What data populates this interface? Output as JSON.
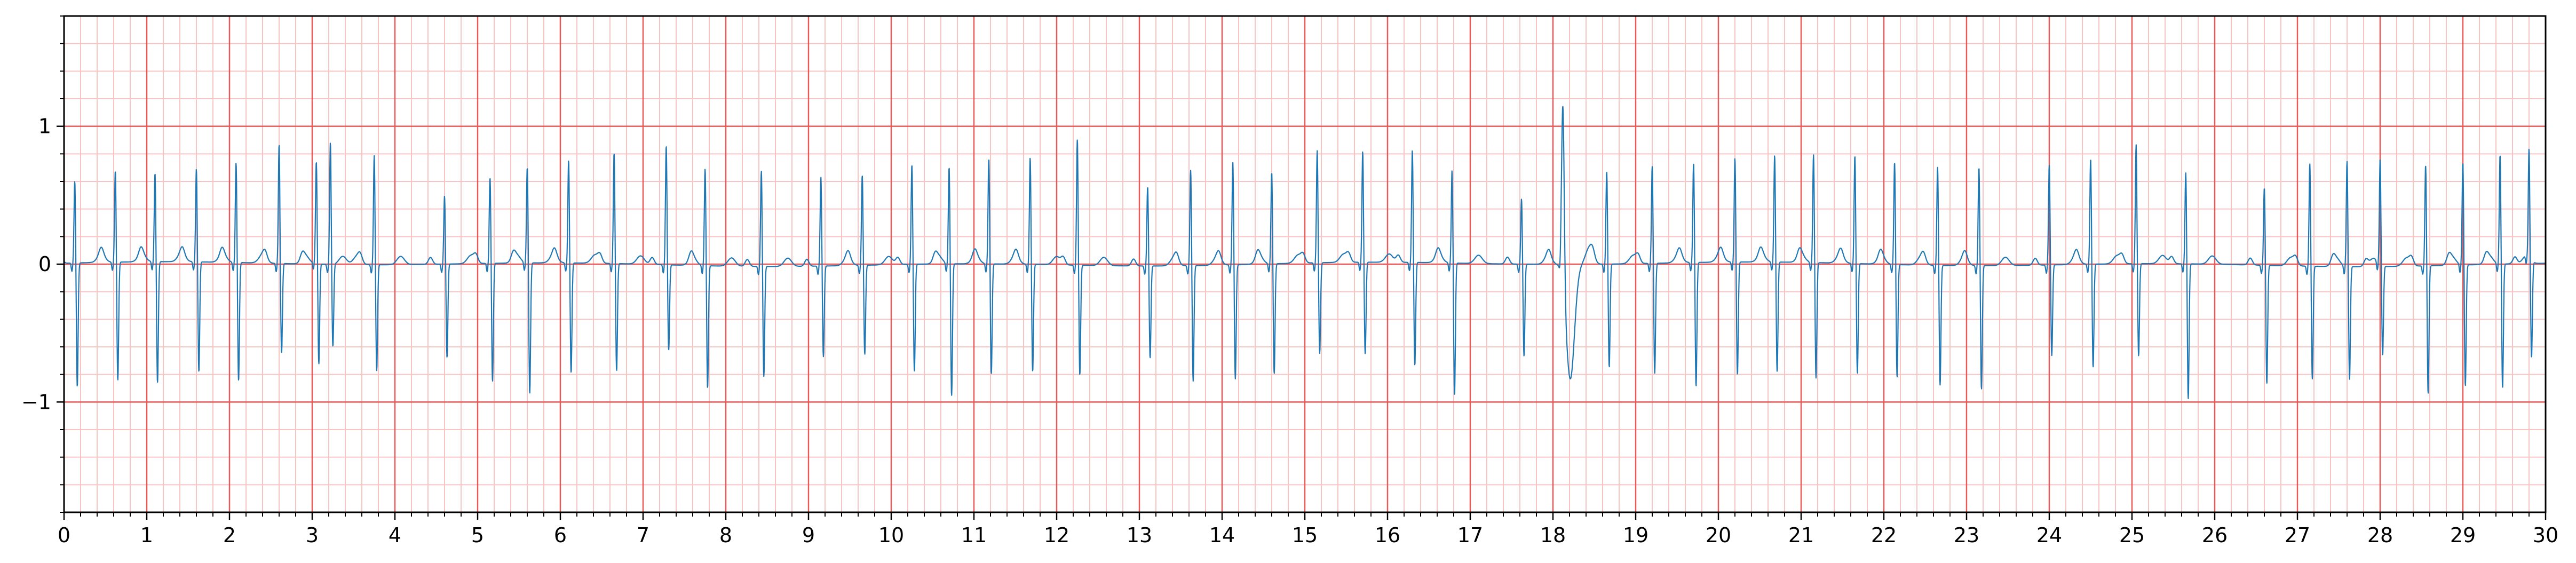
{
  "chart_data": {
    "type": "line",
    "title": "",
    "xlabel": "",
    "ylabel": "",
    "xlim": [
      0,
      30
    ],
    "ylim": [
      -1.8,
      1.8
    ],
    "x_ticks": [
      0,
      1,
      2,
      3,
      4,
      5,
      6,
      7,
      8,
      9,
      10,
      11,
      12,
      13,
      14,
      15,
      16,
      17,
      18,
      19,
      20,
      21,
      22,
      23,
      24,
      25,
      26,
      27,
      28,
      29,
      30
    ],
    "x_tick_labels": [
      "0",
      "1",
      "2",
      "3",
      "4",
      "5",
      "6",
      "7",
      "8",
      "9",
      "10",
      "11",
      "12",
      "13",
      "14",
      "15",
      "16",
      "17",
      "18",
      "19",
      "20",
      "21",
      "22",
      "23",
      "24",
      "25",
      "26",
      "27",
      "28",
      "29",
      "30"
    ],
    "y_ticks": [
      -1,
      0,
      1
    ],
    "y_tick_labels": [
      "−1",
      "0",
      "1"
    ],
    "grid": {
      "major_x_step": 1,
      "major_y_step": 1,
      "minor_x_step": 0.2,
      "minor_y_step": 0.2,
      "major_color": "#e85a5a",
      "minor_color": "#f7c3c3"
    },
    "colors": {
      "line": "#1f77b4",
      "axes": "#000000"
    },
    "series": [
      {
        "name": "",
        "beats": [
          {
            "t": 0.13,
            "r": 0.6,
            "s": -0.9
          },
          {
            "t": 0.62,
            "r": 0.67,
            "s": -0.86
          },
          {
            "t": 1.1,
            "r": 0.65,
            "s": -0.88
          },
          {
            "t": 1.6,
            "r": 0.68,
            "s": -0.8
          },
          {
            "t": 2.08,
            "r": 0.73,
            "s": -0.86
          },
          {
            "t": 2.6,
            "r": 0.87,
            "s": -0.65
          },
          {
            "t": 3.05,
            "r": 0.7,
            "s": -0.75
          },
          {
            "t": 3.22,
            "r": 0.89,
            "s": -0.6
          },
          {
            "t": 3.75,
            "r": 0.8,
            "s": -0.77
          },
          {
            "t": 4.6,
            "r": 0.5,
            "s": -0.68
          },
          {
            "t": 5.15,
            "r": 0.63,
            "s": -0.86
          },
          {
            "t": 5.6,
            "r": 0.7,
            "s": -0.95
          },
          {
            "t": 6.1,
            "r": 0.75,
            "s": -0.8
          },
          {
            "t": 6.65,
            "r": 0.81,
            "s": -0.78
          },
          {
            "t": 7.28,
            "r": 0.87,
            "s": -0.62
          },
          {
            "t": 7.75,
            "r": 0.71,
            "s": -0.89
          },
          {
            "t": 8.43,
            "r": 0.7,
            "s": -0.8
          },
          {
            "t": 9.15,
            "r": 0.65,
            "s": -0.66
          },
          {
            "t": 9.65,
            "r": 0.66,
            "s": -0.65
          },
          {
            "t": 10.25,
            "r": 0.73,
            "s": -0.78
          },
          {
            "t": 10.7,
            "r": 0.71,
            "s": -0.96
          },
          {
            "t": 11.18,
            "r": 0.77,
            "s": -0.8
          },
          {
            "t": 11.68,
            "r": 0.78,
            "s": -0.78
          },
          {
            "t": 12.25,
            "r": 0.92,
            "s": -0.8
          },
          {
            "t": 13.1,
            "r": 0.58,
            "s": -0.67
          },
          {
            "t": 13.62,
            "r": 0.7,
            "s": -0.84
          },
          {
            "t": 14.13,
            "r": 0.75,
            "s": -0.83
          },
          {
            "t": 14.6,
            "r": 0.67,
            "s": -0.8
          },
          {
            "t": 15.15,
            "r": 0.82,
            "s": -0.66
          },
          {
            "t": 15.7,
            "r": 0.81,
            "s": -0.67
          },
          {
            "t": 16.3,
            "r": 0.82,
            "s": -0.75
          },
          {
            "t": 16.78,
            "r": 0.68,
            "s": -0.96
          },
          {
            "t": 17.62,
            "r": 0.48,
            "s": -0.67
          },
          {
            "t": 18.12,
            "r": 1.31,
            "s": -0.83,
            "wide": true
          },
          {
            "t": 18.65,
            "r": 0.68,
            "s": -0.75
          },
          {
            "t": 19.2,
            "r": 0.71,
            "s": -0.8
          },
          {
            "t": 19.7,
            "r": 0.73,
            "s": -0.9
          },
          {
            "t": 20.2,
            "r": 0.76,
            "s": -0.82
          },
          {
            "t": 20.68,
            "r": 0.78,
            "s": -0.8
          },
          {
            "t": 21.15,
            "r": 0.79,
            "s": -0.84
          },
          {
            "t": 21.65,
            "r": 0.79,
            "s": -0.8
          },
          {
            "t": 22.13,
            "r": 0.75,
            "s": -0.82
          },
          {
            "t": 22.65,
            "r": 0.72,
            "s": -0.87
          },
          {
            "t": 23.15,
            "r": 0.72,
            "s": -0.9
          },
          {
            "t": 24.0,
            "r": 0.73,
            "s": -0.66
          },
          {
            "t": 24.5,
            "r": 0.77,
            "s": -0.75
          },
          {
            "t": 25.05,
            "r": 0.87,
            "s": -0.67
          },
          {
            "t": 25.65,
            "r": 0.67,
            "s": -0.98
          },
          {
            "t": 26.6,
            "r": 0.57,
            "s": -0.86
          },
          {
            "t": 27.15,
            "r": 0.75,
            "s": -0.82
          },
          {
            "t": 27.6,
            "r": 0.77,
            "s": -0.82
          },
          {
            "t": 28.0,
            "r": 0.77,
            "s": -0.65
          },
          {
            "t": 28.55,
            "r": 0.74,
            "s": -0.93
          },
          {
            "t": 29.0,
            "r": 0.75,
            "s": -0.88
          },
          {
            "t": 29.45,
            "r": 0.8,
            "s": -0.9
          },
          {
            "t": 29.8,
            "r": 0.79,
            "s": -0.71
          }
        ]
      }
    ]
  }
}
